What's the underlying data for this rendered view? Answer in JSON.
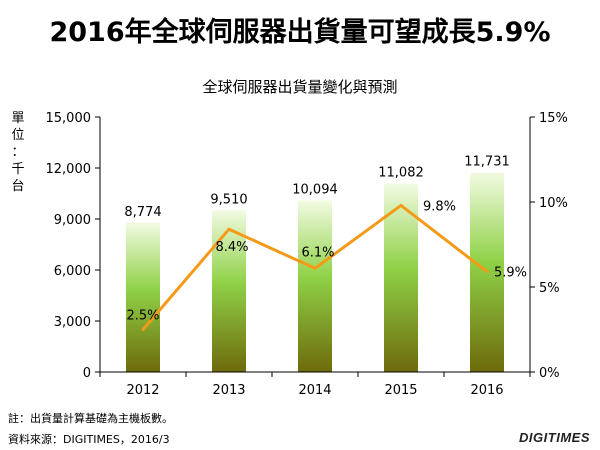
{
  "headline": "2016年全球伺服器出貨量可望成長5.9%",
  "unit_label": [
    "單",
    "位",
    "：",
    "千",
    "台"
  ],
  "notes": {
    "note": "註：出貨量計算基礎為主機板數。",
    "source": "資料來源：DIGITIMES，2016/3"
  },
  "logo_text": "DIGITIMES",
  "colors": {
    "bar_top": "#f2fbe2",
    "bar_mid": "#8fd146",
    "bar_bottom": "#6e6a0c",
    "line": "#f59a18",
    "axis": "#000000"
  },
  "chart_data": {
    "type": "bar+line",
    "title": "全球伺服器出貨量變化與預測",
    "categories": [
      "2012",
      "2013",
      "2014",
      "2015",
      "2016"
    ],
    "series": [
      {
        "type": "bar",
        "axis": "left",
        "values": [
          8774,
          9510,
          10094,
          11082,
          11731
        ],
        "labels": [
          "8,774",
          "9,510",
          "10,094",
          "11,082",
          "11,731"
        ]
      },
      {
        "type": "line",
        "axis": "right",
        "values": [
          2.5,
          8.4,
          6.1,
          9.8,
          5.9
        ],
        "labels": [
          "2.5%",
          "8.4%",
          "6.1%",
          "9.8%",
          "5.9%"
        ]
      }
    ],
    "y_left": {
      "range": [
        0,
        15000
      ],
      "ticks": [
        0,
        3000,
        6000,
        9000,
        12000,
        15000
      ],
      "tick_labels": [
        "0",
        "3,000",
        "6,000",
        "9,000",
        "12,000",
        "15,000"
      ]
    },
    "y_right": {
      "range": [
        0,
        15
      ],
      "ticks": [
        0,
        5,
        10,
        15
      ],
      "tick_labels": [
        "0%",
        "5%",
        "10%",
        "15%"
      ]
    },
    "grid": false,
    "legend": "none"
  }
}
